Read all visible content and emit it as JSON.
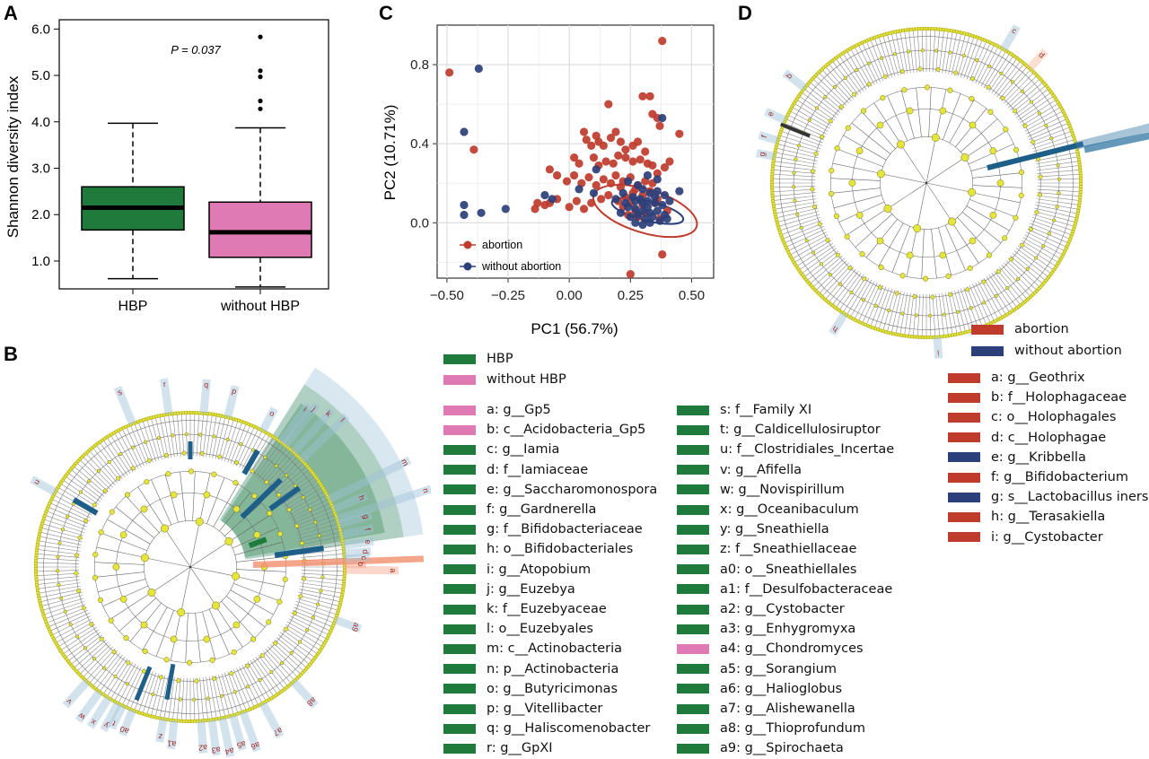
{
  "panels": {
    "A": {
      "letter": "A",
      "ylabel": "Shannon diversity index",
      "pvalue": "P = 0.037",
      "yticks": [
        "1.0",
        "2.0",
        "3.0",
        "4.0",
        "5.0",
        "6.0"
      ],
      "categories": [
        "HBP",
        "without HBP"
      ]
    },
    "B": {
      "letter": "B"
    },
    "C": {
      "letter": "C",
      "xlabel": "PC1 (56.7%)",
      "ylabel": "PC2 (10.71%)",
      "xticks": [
        "−0.50",
        "−0.25",
        "0.00",
        "0.25",
        "0.50"
      ],
      "yticks": [
        "0.0",
        "0.4",
        "0.8"
      ],
      "legend": [
        "abortion",
        "without abortion"
      ]
    },
    "D": {
      "letter": "D"
    }
  },
  "colors": {
    "hbp": "#1e7b3c",
    "without_hbp": "#e07ab4",
    "abortion": "#bf3b2c",
    "without_abortion": "#2b3f7a",
    "node": "#e6e63a"
  },
  "chart_data": [
    {
      "type": "box",
      "panel": "A",
      "ylabel": "Shannon diversity index",
      "ylim": [
        0.4,
        6.2
      ],
      "categories": [
        "HBP",
        "without HBP"
      ],
      "boxes": [
        {
          "name": "HBP",
          "whisker_low": 0.62,
          "q1": 1.67,
          "median": 2.15,
          "q3": 2.6,
          "whisker_high": 3.97,
          "outliers": []
        },
        {
          "name": "without HBP",
          "whisker_low": 0.44,
          "q1": 1.08,
          "median": 1.62,
          "q3": 2.27,
          "whisker_high": 3.87,
          "outliers": [
            4.28,
            4.45,
            4.97,
            5.1,
            5.83
          ]
        }
      ],
      "annotation": "P = 0.037"
    },
    {
      "type": "scatter",
      "panel": "C",
      "xlabel": "PC1 (56.7%)",
      "ylabel": "PC2 (10.71%)",
      "xlim": [
        -0.54,
        0.59
      ],
      "ylim": [
        -0.28,
        1.0
      ],
      "grid": true,
      "legend_position": "bottom-left",
      "series": [
        {
          "name": "abortion",
          "points": [
            [
              -0.49,
              0.76
            ],
            [
              -0.39,
              0.37
            ],
            [
              0.38,
              0.92
            ],
            [
              0.16,
              0.6
            ],
            [
              0.3,
              0.64
            ],
            [
              0.34,
              0.55
            ],
            [
              0.36,
              0.53
            ],
            [
              0.37,
              0.49
            ],
            [
              0.33,
              0.64
            ],
            [
              0.45,
              0.45
            ],
            [
              0.06,
              0.46
            ],
            [
              0.07,
              0.42
            ],
            [
              0.09,
              0.39
            ],
            [
              0.11,
              0.44
            ],
            [
              0.12,
              0.41
            ],
            [
              0.14,
              0.39
            ],
            [
              0.17,
              0.43
            ],
            [
              0.19,
              0.46
            ],
            [
              0.21,
              0.41
            ],
            [
              0.23,
              0.37
            ],
            [
              0.26,
              0.39
            ],
            [
              0.28,
              0.41
            ],
            [
              0.31,
              0.36
            ],
            [
              0.02,
              0.33
            ],
            [
              0.04,
              0.3
            ],
            [
              0.1,
              0.33
            ],
            [
              0.12,
              0.29
            ],
            [
              0.15,
              0.31
            ],
            [
              0.18,
              0.3
            ],
            [
              0.2,
              0.34
            ],
            [
              0.23,
              0.33
            ],
            [
              0.26,
              0.31
            ],
            [
              0.29,
              0.32
            ],
            [
              0.32,
              0.3
            ],
            [
              0.34,
              0.29
            ],
            [
              -0.08,
              0.27
            ],
            [
              -0.05,
              0.24
            ],
            [
              -0.01,
              0.21
            ],
            [
              0.02,
              0.24
            ],
            [
              0.05,
              0.2
            ],
            [
              0.08,
              0.23
            ],
            [
              0.11,
              0.19
            ],
            [
              0.14,
              0.22
            ],
            [
              0.17,
              0.2
            ],
            [
              0.19,
              0.24
            ],
            [
              0.22,
              0.21
            ],
            [
              0.25,
              0.23
            ],
            [
              0.28,
              0.19
            ],
            [
              0.31,
              0.21
            ],
            [
              0.34,
              0.2
            ],
            [
              0.36,
              0.25
            ],
            [
              -0.13,
              0.1
            ],
            [
              -0.1,
              0.09
            ],
            [
              -0.05,
              0.12
            ],
            [
              0.0,
              0.08
            ],
            [
              0.03,
              0.11
            ],
            [
              -0.14,
              0.07
            ],
            [
              -0.08,
              0.1
            ],
            [
              0.06,
              0.07
            ],
            [
              0.09,
              0.1
            ],
            [
              0.13,
              0.12
            ],
            [
              0.16,
              0.14
            ],
            [
              0.2,
              0.11
            ],
            [
              0.23,
              0.13
            ],
            [
              0.26,
              0.15
            ],
            [
              0.22,
              0.08
            ],
            [
              0.27,
              0.06
            ],
            [
              0.3,
              0.09
            ],
            [
              0.24,
              0.04
            ],
            [
              0.28,
              0.03
            ],
            [
              0.31,
              0.05
            ],
            [
              0.25,
              0.1
            ],
            [
              0.36,
              0.12
            ],
            [
              0.38,
              -0.16
            ],
            [
              0.25,
              -0.26
            ],
            [
              0.39,
              0.28
            ],
            [
              0.41,
              0.31
            ],
            [
              0.21,
              0.18
            ],
            [
              0.27,
              0.17
            ],
            [
              0.3,
              0.14
            ],
            [
              0.33,
              0.16
            ],
            [
              0.35,
              0.1
            ],
            [
              0.4,
              0.06
            ],
            [
              0.37,
              0.02
            ]
          ]
        },
        {
          "name": "without abortion",
          "points": [
            [
              -0.37,
              0.78
            ],
            [
              -0.43,
              0.46
            ],
            [
              -0.43,
              0.04
            ],
            [
              -0.36,
              0.05
            ],
            [
              -0.26,
              0.07
            ],
            [
              -0.43,
              0.09
            ],
            [
              -0.1,
              0.14
            ],
            [
              -0.07,
              0.12
            ],
            [
              0.04,
              0.17
            ],
            [
              0.1,
              0.15
            ],
            [
              0.11,
              0.27
            ],
            [
              0.38,
              0.53
            ],
            [
              0.45,
              0.16
            ],
            [
              0.32,
              0.24
            ],
            [
              0.36,
              0.22
            ],
            [
              0.24,
              0.21
            ],
            [
              0.28,
              0.19
            ],
            [
              0.3,
              0.17
            ],
            [
              0.33,
              0.15
            ],
            [
              0.36,
              0.16
            ],
            [
              0.39,
              0.14
            ],
            [
              0.22,
              0.15
            ],
            [
              0.26,
              0.13
            ],
            [
              0.29,
              0.12
            ],
            [
              0.32,
              0.11
            ],
            [
              0.35,
              0.1
            ],
            [
              0.38,
              0.09
            ],
            [
              0.41,
              0.11
            ],
            [
              0.24,
              0.08
            ],
            [
              0.27,
              0.07
            ],
            [
              0.3,
              0.06
            ],
            [
              0.33,
              0.05
            ],
            [
              0.36,
              0.06
            ],
            [
              0.39,
              0.04
            ],
            [
              0.21,
              0.05
            ],
            [
              0.25,
              0.03
            ],
            [
              0.28,
              0.04
            ],
            [
              0.31,
              0.02
            ],
            [
              0.34,
              0.03
            ],
            [
              0.37,
              0.01
            ],
            [
              0.4,
              0.02
            ],
            [
              0.27,
              0.0
            ],
            [
              0.3,
              -0.01
            ],
            [
              0.33,
              0.0
            ],
            [
              0.19,
              0.12
            ],
            [
              0.23,
              0.1
            ],
            [
              0.35,
              0.13
            ],
            [
              0.3,
              0.1
            ],
            [
              0.27,
              0.11
            ],
            [
              0.32,
              0.08
            ]
          ]
        }
      ],
      "ellipses": [
        {
          "series": "abortion",
          "center": [
            0.31,
            0.06
          ],
          "semi_axes": [
            0.22,
            0.11
          ],
          "angle_deg": -17
        },
        {
          "series": "without abortion",
          "center": [
            0.32,
            0.06
          ],
          "semi_axes": [
            0.15,
            0.05
          ],
          "angle_deg": -14
        }
      ]
    }
  ],
  "legend_B_groups": [
    {
      "label": "HBP",
      "color": "#1e7b3c"
    },
    {
      "label": "without HBP",
      "color": "#e07ab4"
    }
  ],
  "legend_B_col1": [
    {
      "label": "a: g__Gp5",
      "color": "#e07ab4"
    },
    {
      "label": "b: c__Acidobacteria_Gp5",
      "color": "#e07ab4"
    },
    {
      "label": "c: g__Iamia",
      "color": "#1e7b3c"
    },
    {
      "label": "d: f__Iamiaceae",
      "color": "#1e7b3c"
    },
    {
      "label": "e: g__Saccharomonospora",
      "color": "#1e7b3c"
    },
    {
      "label": "f: g__Gardnerella",
      "color": "#1e7b3c"
    },
    {
      "label": "g: f__Bifidobacteriaceae",
      "color": "#1e7b3c"
    },
    {
      "label": "h: o__Bifidobacteriales",
      "color": "#1e7b3c"
    },
    {
      "label": "i: g__Atopobium",
      "color": "#1e7b3c"
    },
    {
      "label": "j: g__Euzebya",
      "color": "#1e7b3c"
    },
    {
      "label": "k: f__Euzebyaceae",
      "color": "#1e7b3c"
    },
    {
      "label": "l: o__Euzebyales",
      "color": "#1e7b3c"
    },
    {
      "label": "m: c__Actinobacteria",
      "color": "#1e7b3c"
    },
    {
      "label": "n: p__Actinobacteria",
      "color": "#1e7b3c"
    },
    {
      "label": "o: g__Butyricimonas",
      "color": "#1e7b3c"
    },
    {
      "label": "p: g__Vitellibacter",
      "color": "#1e7b3c"
    },
    {
      "label": "q: g__Haliscomenobacter",
      "color": "#1e7b3c"
    },
    {
      "label": "r: g__GpXI",
      "color": "#1e7b3c"
    }
  ],
  "legend_B_col2": [
    {
      "label": "s: f__Family XI",
      "color": "#1e7b3c"
    },
    {
      "label": "t: g__Caldicellulosiruptor",
      "color": "#1e7b3c"
    },
    {
      "label": "u: f__Clostridiales_Incertae",
      "color": "#1e7b3c"
    },
    {
      "label": "v: g__Afifella",
      "color": "#1e7b3c"
    },
    {
      "label": "w: g__Novispirillum",
      "color": "#1e7b3c"
    },
    {
      "label": "x: g__Oceanibaculum",
      "color": "#1e7b3c"
    },
    {
      "label": "y: g__Sneathiella",
      "color": "#1e7b3c"
    },
    {
      "label": "z: f__Sneathiellaceae",
      "color": "#1e7b3c"
    },
    {
      "label": "a0: o__Sneathiellales",
      "color": "#1e7b3c"
    },
    {
      "label": "a1: f__Desulfobacteraceae",
      "color": "#1e7b3c"
    },
    {
      "label": "a2: g__Cystobacter",
      "color": "#1e7b3c"
    },
    {
      "label": "a3: g__Enhygromyxa",
      "color": "#1e7b3c"
    },
    {
      "label": "a4: g__Chondromyces",
      "color": "#e07ab4"
    },
    {
      "label": "a5: g__Sorangium",
      "color": "#1e7b3c"
    },
    {
      "label": "a6: g__Halioglobus",
      "color": "#1e7b3c"
    },
    {
      "label": "a7: g__Alishewanella",
      "color": "#1e7b3c"
    },
    {
      "label": "a8: g__Thioprofundum",
      "color": "#1e7b3c"
    },
    {
      "label": "a9: g__Spirochaeta",
      "color": "#1e7b3c"
    }
  ],
  "legend_D_groups": [
    {
      "label": "abortion",
      "color": "#bf3b2c"
    },
    {
      "label": "without abortion",
      "color": "#2b3f7a"
    }
  ],
  "legend_D": [
    {
      "label": "a: g__Geothrix",
      "color": "#bf3b2c"
    },
    {
      "label": "b: f__Holophagaceae",
      "color": "#bf3b2c"
    },
    {
      "label": "c: o__Holophagales",
      "color": "#bf3b2c"
    },
    {
      "label": "d: c__Holophagae",
      "color": "#bf3b2c"
    },
    {
      "label": "e: g__Kribbella",
      "color": "#2b3f7a"
    },
    {
      "label": "f: g__Bifidobacterium",
      "color": "#bf3b2c"
    },
    {
      "label": "g: s__Lactobacillus iners",
      "color": "#2b3f7a"
    },
    {
      "label": "h: g__Terasakiella",
      "color": "#bf3b2c"
    },
    {
      "label": "i: g__Cystobacter",
      "color": "#bf3b2c"
    }
  ],
  "cladogram_B_labels": [
    "s",
    "r",
    "q",
    "p",
    "o",
    "u",
    "n",
    "m",
    "l",
    "k",
    "j",
    "i",
    "h",
    "g",
    "f",
    "e",
    "d",
    "c",
    "b",
    "a",
    "a9",
    "a8",
    "a7",
    "a6",
    "a5",
    "a4",
    "a3",
    "a2",
    "a1",
    "a0",
    "y",
    "x",
    "w",
    "v",
    "t",
    "z"
  ],
  "cladogram_D_labels": [
    "c",
    "d",
    "a",
    "b",
    "e",
    "f",
    "g",
    "h",
    "i"
  ]
}
